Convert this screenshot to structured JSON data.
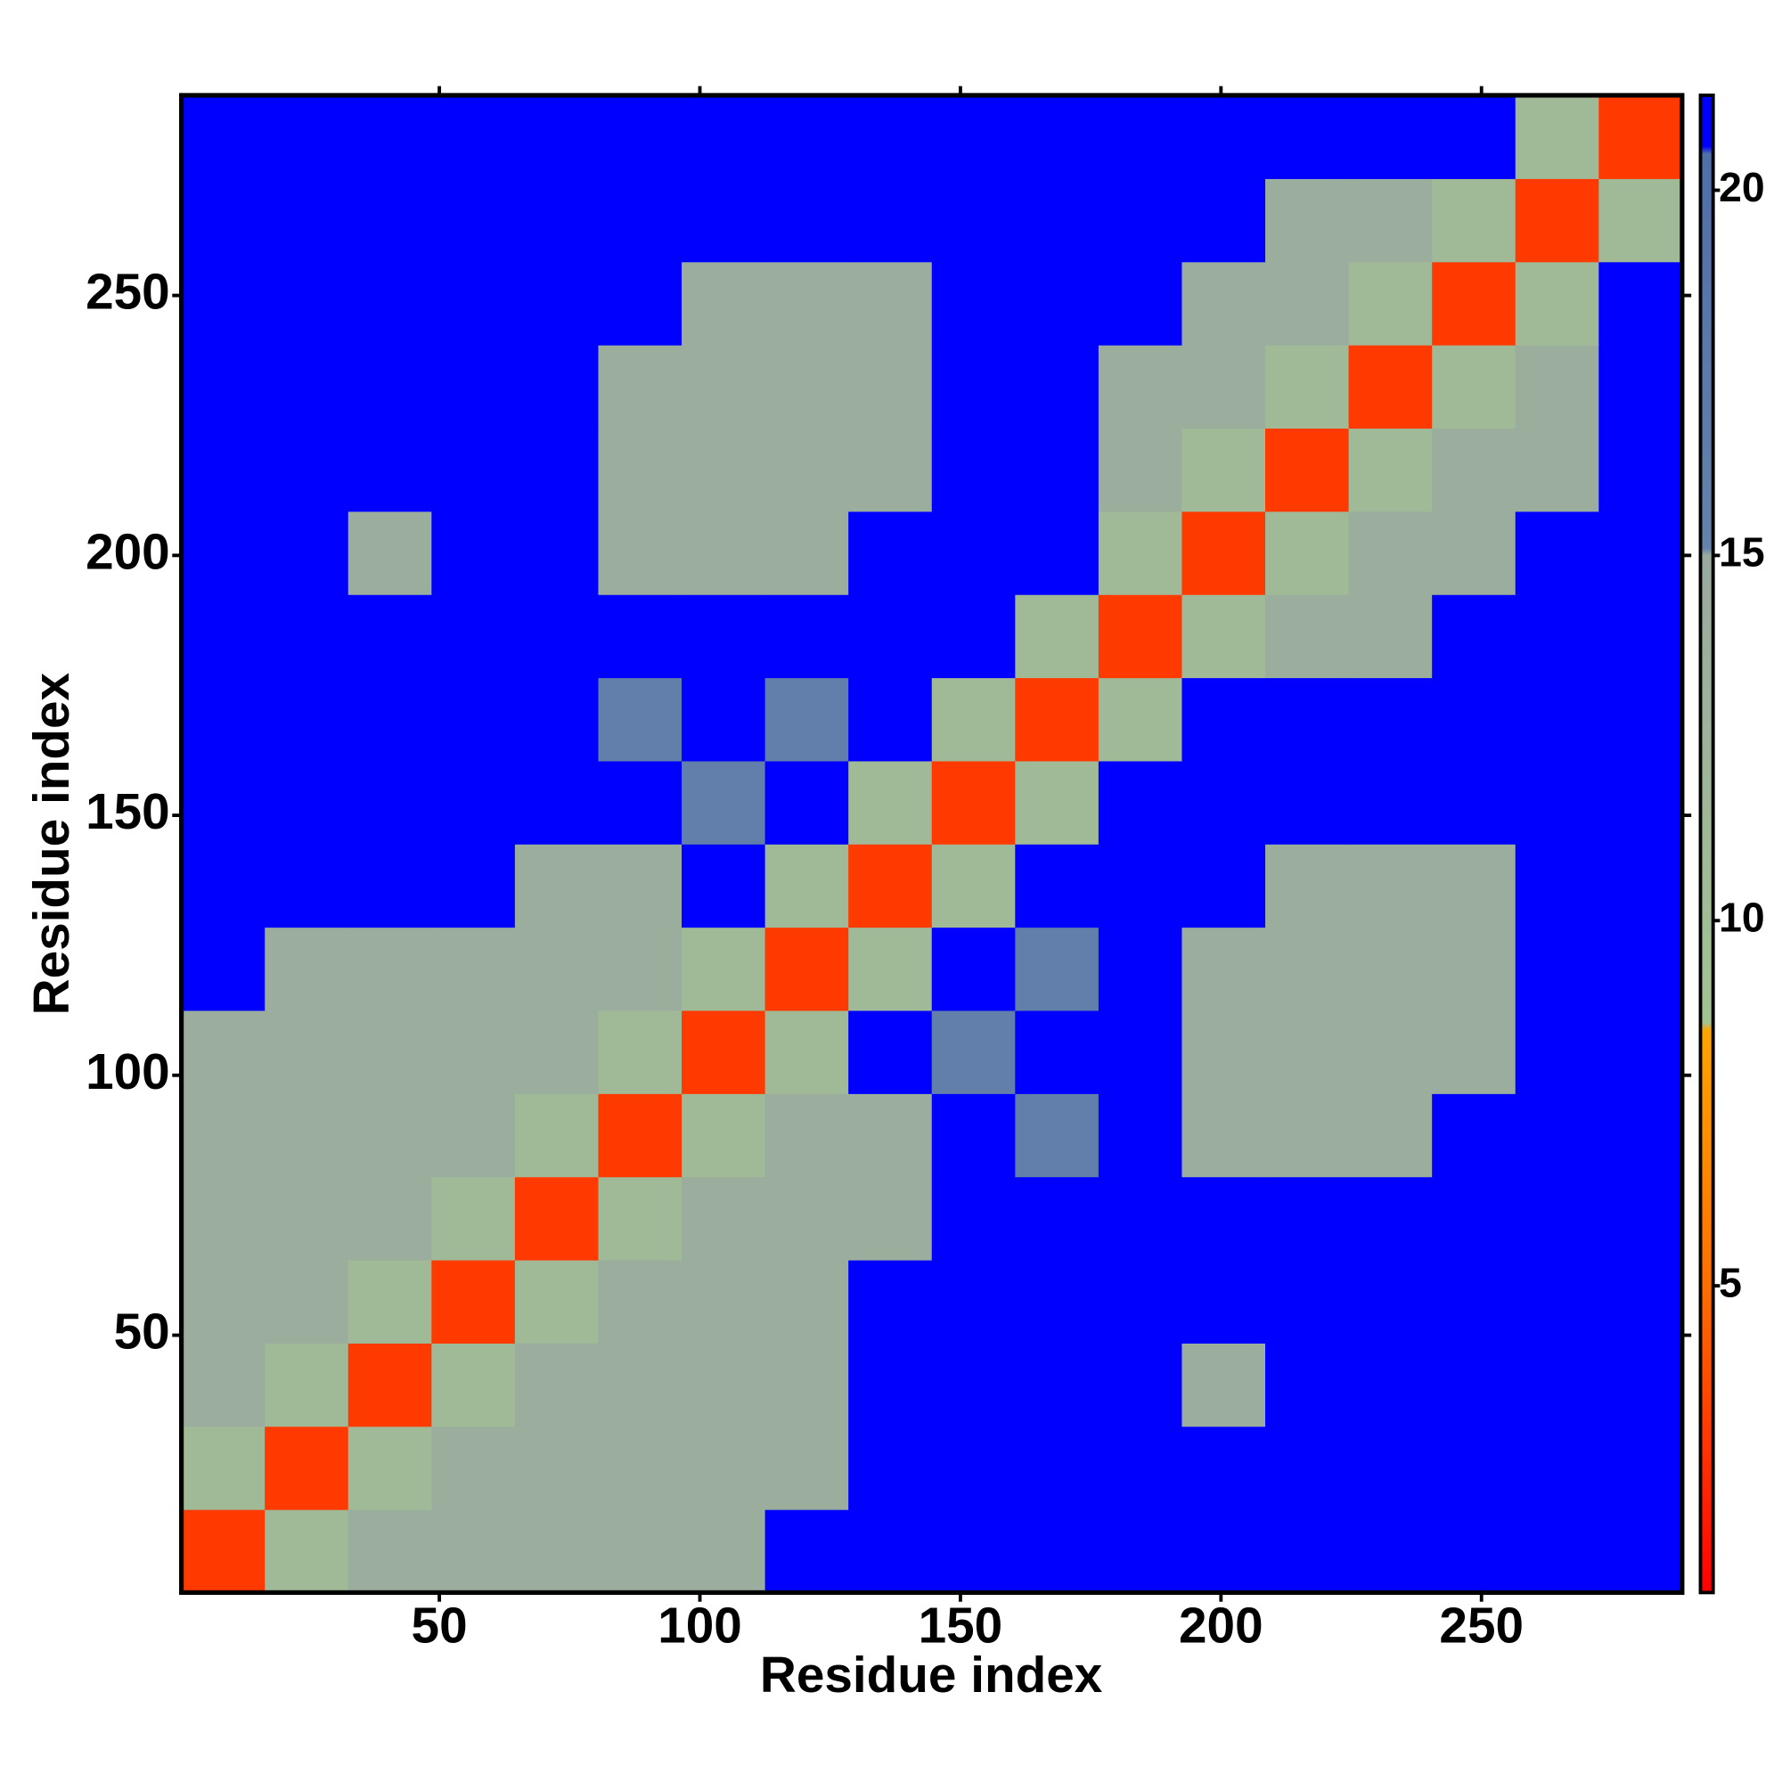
{
  "chart_data": {
    "type": "heatmap",
    "xlabel": "Residue index",
    "ylabel": "Residue index",
    "xlim": [
      0.5,
      288.5
    ],
    "ylim": [
      0.5,
      288.5
    ],
    "xticks": [
      50,
      100,
      150,
      200,
      250
    ],
    "yticks": [
      50,
      100,
      150,
      200,
      250
    ],
    "xbins": [
      0.5,
      16.5,
      32.5,
      48.5,
      64.5,
      80.5,
      96.5,
      112.5,
      128.5,
      144.5,
      160.5,
      176.5,
      192.5,
      208.5,
      224.5,
      240.5,
      256.5,
      272.5,
      288.5
    ],
    "ybins": [
      0.5,
      16.5,
      32.5,
      48.5,
      64.5,
      80.5,
      96.5,
      112.5,
      128.5,
      144.5,
      160.5,
      176.5,
      192.5,
      208.5,
      224.5,
      240.5,
      256.5,
      272.5,
      288.5
    ],
    "z": [
      [
        3,
        11,
        14,
        14,
        14,
        14,
        14,
        21,
        21,
        21,
        21,
        21,
        21,
        21,
        21,
        21,
        21,
        21
      ],
      [
        11,
        3,
        11,
        14,
        14,
        14,
        14,
        14,
        21,
        21,
        21,
        21,
        21,
        21,
        21,
        21,
        21,
        21
      ],
      [
        14,
        11,
        3,
        11,
        14,
        14,
        14,
        14,
        21,
        21,
        21,
        21,
        14,
        21,
        21,
        21,
        21,
        21
      ],
      [
        14,
        14,
        11,
        3,
        11,
        14,
        14,
        14,
        21,
        21,
        21,
        21,
        21,
        21,
        21,
        21,
        21,
        21
      ],
      [
        14,
        14,
        14,
        11,
        3,
        11,
        14,
        14,
        14,
        21,
        21,
        21,
        21,
        21,
        21,
        21,
        21,
        21
      ],
      [
        14,
        14,
        14,
        14,
        11,
        3,
        11,
        14,
        14,
        21,
        16,
        21,
        14,
        14,
        14,
        21,
        21,
        21
      ],
      [
        14,
        14,
        14,
        14,
        14,
        11,
        3,
        11,
        21,
        16,
        21,
        21,
        14,
        14,
        14,
        14,
        21,
        21
      ],
      [
        21,
        14,
        14,
        14,
        14,
        14,
        11,
        3,
        11,
        21,
        16,
        21,
        14,
        14,
        14,
        14,
        21,
        21
      ],
      [
        21,
        21,
        21,
        21,
        14,
        14,
        21,
        11,
        3,
        11,
        21,
        21,
        21,
        14,
        14,
        14,
        21,
        21
      ],
      [
        21,
        21,
        21,
        21,
        21,
        21,
        16,
        21,
        11,
        3,
        11,
        21,
        21,
        21,
        21,
        21,
        21,
        21
      ],
      [
        21,
        21,
        21,
        21,
        21,
        16,
        21,
        16,
        21,
        11,
        3,
        11,
        21,
        21,
        21,
        21,
        21,
        21
      ],
      [
        21,
        21,
        21,
        21,
        21,
        21,
        21,
        21,
        21,
        21,
        11,
        3,
        11,
        14,
        14,
        21,
        21,
        21
      ],
      [
        21,
        21,
        14,
        21,
        21,
        14,
        14,
        14,
        21,
        21,
        21,
        11,
        3,
        11,
        14,
        14,
        21,
        21
      ],
      [
        21,
        21,
        21,
        21,
        21,
        14,
        14,
        14,
        14,
        21,
        21,
        14,
        11,
        3,
        11,
        14,
        14,
        21
      ],
      [
        21,
        21,
        21,
        21,
        21,
        14,
        14,
        14,
        14,
        21,
        21,
        14,
        14,
        11,
        3,
        11,
        14,
        21
      ],
      [
        21,
        21,
        21,
        21,
        21,
        21,
        14,
        14,
        14,
        21,
        21,
        21,
        14,
        14,
        11,
        3,
        11,
        21
      ],
      [
        21,
        21,
        21,
        21,
        21,
        21,
        21,
        21,
        21,
        21,
        21,
        21,
        21,
        14,
        14,
        11,
        3,
        11
      ],
      [
        21,
        21,
        21,
        21,
        21,
        21,
        21,
        21,
        21,
        21,
        21,
        21,
        21,
        21,
        21,
        21,
        11,
        3
      ]
    ],
    "zlim": [
      0.8,
      21.3
    ],
    "zticks": [
      5,
      10,
      15,
      20
    ],
    "colorscale": [
      {
        "value": 0.8,
        "color": "#ff0000"
      },
      {
        "value": 5,
        "color": "#ff6e00"
      },
      {
        "value": 8.5,
        "color": "#ffa500"
      },
      {
        "value": 8.6,
        "color": "#a3c292"
      },
      {
        "value": 15,
        "color": "#9aaaa0"
      },
      {
        "value": 15.1,
        "color": "#6482aa"
      },
      {
        "value": 20.5,
        "color": "#506ea8"
      },
      {
        "value": 20.6,
        "color": "#0000ff"
      },
      {
        "value": 21.3,
        "color": "#0000ff"
      }
    ]
  }
}
